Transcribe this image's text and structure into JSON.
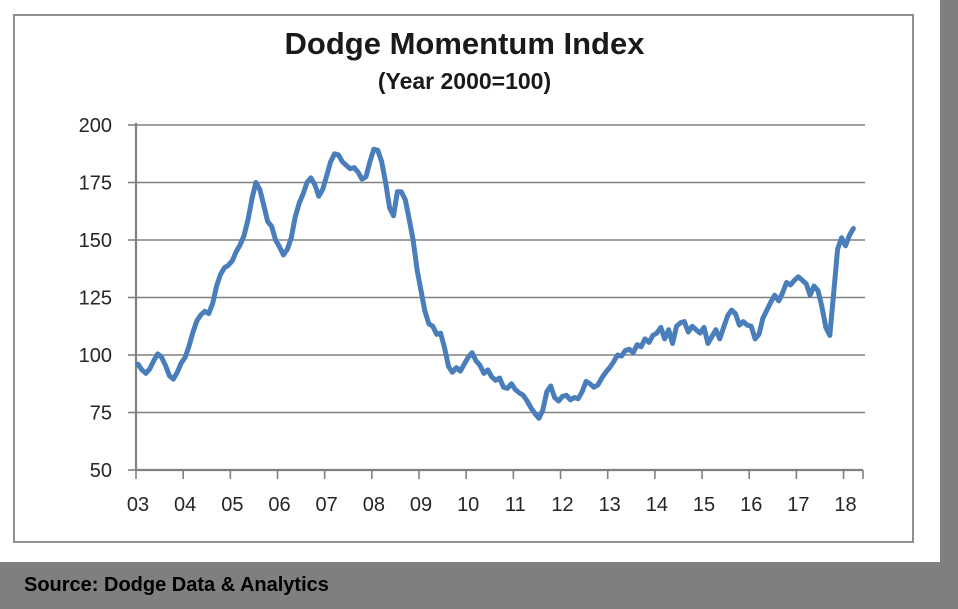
{
  "chart": {
    "title": "Dodge Momentum Index",
    "subtitle": "(Year 2000=100)"
  },
  "source_bar": {
    "text": "Source: Dodge Data & Analytics"
  },
  "colors": {
    "line": "#4a7ebb",
    "grid": "#808080",
    "axis": "#808080",
    "tick_label": "#262626",
    "frame_border": "#8f8f8f",
    "shadow_band": "#7f7f7f"
  },
  "chart_data": {
    "type": "line",
    "title": "Dodge Momentum Index",
    "subtitle": "(Year 2000=100)",
    "source": "Source: Dodge Data & Analytics",
    "frequency": "monthly",
    "x_start": "2003-01",
    "x_end": "2018-03",
    "x_tick_labels": [
      "03",
      "04",
      "05",
      "06",
      "07",
      "08",
      "09",
      "10",
      "11",
      "12",
      "13",
      "14",
      "15",
      "16",
      "17",
      "18"
    ],
    "y_ticks": [
      50,
      75,
      100,
      125,
      150,
      175,
      200
    ],
    "ylim": [
      50,
      200
    ],
    "grid": "horizontal",
    "legend": "none",
    "series": [
      {
        "name": "Dodge Momentum Index",
        "values": [
          96,
          93.5,
          92,
          94,
          97.5,
          100.5,
          99,
          95.5,
          91,
          89.5,
          92.5,
          96.5,
          99,
          104,
          110,
          115,
          117.5,
          119,
          118,
          122.5,
          130,
          135,
          138,
          139,
          141,
          145,
          148,
          152,
          159,
          168,
          175,
          172,
          165,
          158,
          156,
          150,
          147,
          143.5,
          146,
          151,
          160,
          166,
          170,
          175,
          177,
          174,
          169,
          172,
          178,
          184,
          187.5,
          187,
          184,
          182.5,
          181,
          181.5,
          179.5,
          176.5,
          177.5,
          184,
          189.5,
          189,
          184,
          175,
          164,
          160.5,
          171,
          171,
          167.5,
          159,
          150,
          137,
          128,
          119,
          113.5,
          112.5,
          109,
          109.5,
          103,
          95,
          92.5,
          94.5,
          93,
          96,
          99,
          101,
          97.5,
          95.5,
          92,
          93.5,
          90.5,
          89,
          90,
          86,
          85.5,
          87.5,
          85,
          83.5,
          82.5,
          80,
          77,
          74.5,
          72.5,
          76,
          84,
          86.5,
          81.5,
          80,
          82,
          82.5,
          80.5,
          81.5,
          81,
          84,
          88.5,
          87.5,
          86,
          87,
          90,
          92.5,
          94.5,
          97,
          100,
          99.5,
          102,
          102.5,
          101,
          104.5,
          103.5,
          107,
          105.5,
          108.5,
          109.5,
          112,
          107,
          111,
          105,
          112.5,
          114,
          114.5,
          110,
          112.5,
          111,
          109.5,
          112,
          105,
          108,
          111,
          107,
          112,
          117,
          119.5,
          118,
          113,
          114.5,
          113,
          112.5,
          107,
          109,
          116,
          119.5,
          123,
          126,
          123.5,
          127,
          131.5,
          130.5,
          132.5,
          134,
          132.5,
          131,
          126,
          130,
          128,
          121,
          112,
          108.5,
          127,
          146,
          151,
          147.5,
          152,
          155
        ]
      }
    ]
  }
}
